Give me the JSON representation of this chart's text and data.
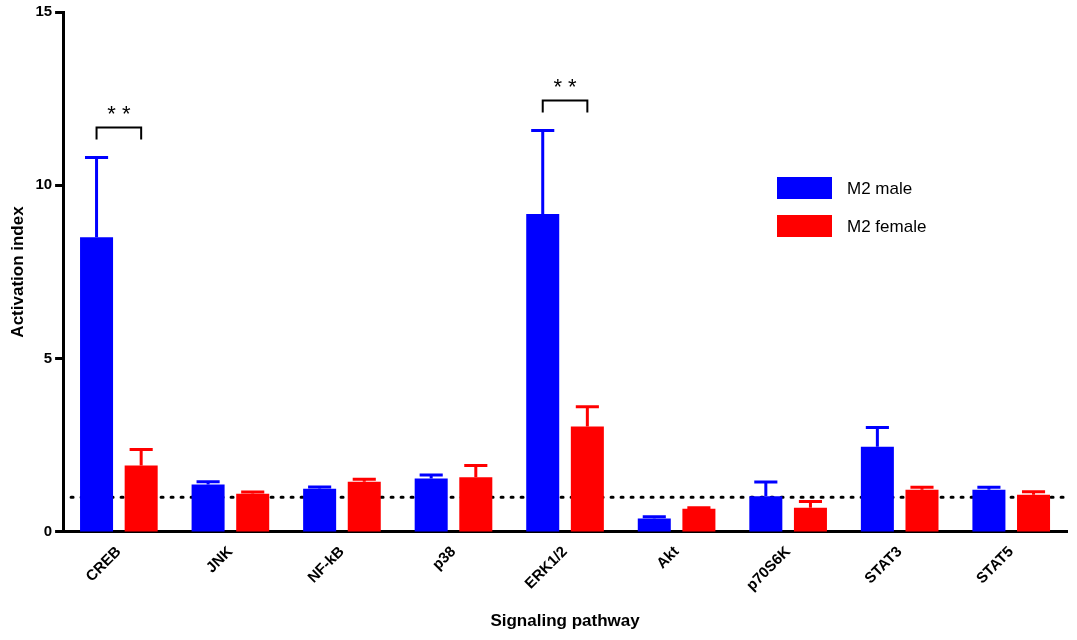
{
  "chart_data": {
    "type": "bar",
    "xlabel": "Signaling pathway",
    "ylabel": "Activation index",
    "categories": [
      "CREB",
      "JNK",
      "NF-kB",
      "p38",
      "ERK1/2",
      "Akt",
      "p70S6K",
      "STAT3",
      "STAT5"
    ],
    "series": [
      {
        "name": "M2 male",
        "color": "#0000ff",
        "values": [
          8.5,
          1.37,
          1.25,
          1.54,
          9.17,
          0.39,
          1.03,
          2.46,
          1.22
        ],
        "errors": [
          [
            8.5,
            10.8
          ],
          [
            1.37,
            1.45
          ],
          [
            1.25,
            1.3
          ],
          [
            1.54,
            1.64
          ],
          [
            9.17,
            11.58
          ],
          [
            0.39,
            0.44
          ],
          [
            1.03,
            1.44
          ],
          [
            2.46,
            3.01
          ],
          [
            1.22,
            1.29
          ]
        ]
      },
      {
        "name": "M2 female",
        "color": "#ff0000",
        "values": [
          1.92,
          1.1,
          1.45,
          1.58,
          3.04,
          0.67,
          0.7,
          1.22,
          1.07
        ],
        "errors": [
          [
            1.92,
            2.38
          ],
          [
            1.1,
            1.15
          ],
          [
            1.45,
            1.52
          ],
          [
            1.58,
            1.92
          ],
          [
            3.04,
            3.61
          ],
          [
            0.67,
            0.7
          ],
          [
            0.7,
            0.88
          ],
          [
            1.22,
            1.29
          ],
          [
            1.07,
            1.16
          ]
        ]
      }
    ],
    "ylim": [
      0,
      15
    ],
    "yticks": [
      0,
      5,
      10,
      15
    ],
    "grid": false,
    "legend": "top right",
    "ref_lines": [
      {
        "axis": "y",
        "value": 1,
        "line_style": "dotted",
        "color": "#000000"
      }
    ],
    "annotations": [
      "* *",
      "* *"
    ]
  }
}
